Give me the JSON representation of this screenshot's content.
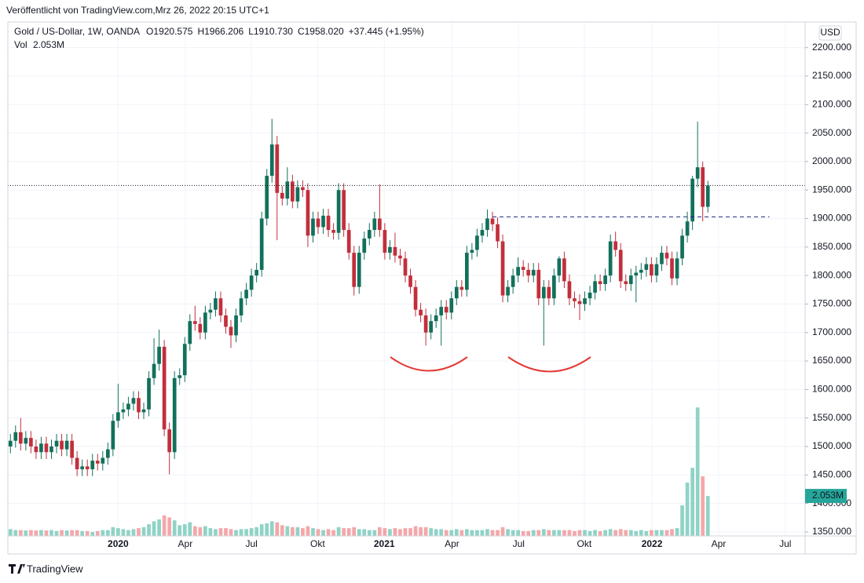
{
  "header": {
    "published": "Veröffentlicht von TradingView.com,Mrz 26, 2022 20:15 UTC+1",
    "brand": "TradingView"
  },
  "chart_data": {
    "type": "candlestick",
    "symbol": "Gold  / US-Dollar, 1W, OANDA",
    "ohlc_labels": [
      {
        "label": "O",
        "value": "1920.575"
      },
      {
        "label": "H",
        "value": "1966.206"
      },
      {
        "label": "L",
        "value": "1910.730"
      },
      {
        "label": "C",
        "value": "1958.020"
      }
    ],
    "change_label": "+37.445 (+1.95%)",
    "currency": "USD",
    "up_color": "#12705b",
    "down_color": "#c22f3c",
    "open": [
      1500,
      1510,
      1525,
      1505,
      1515,
      1500,
      1490,
      1505,
      1490,
      1500,
      1510,
      1495,
      1510,
      1480,
      1460,
      1465,
      1460,
      1475,
      1470,
      1480,
      1495,
      1545,
      1560,
      1565,
      1575,
      1585,
      1560,
      1565,
      1620,
      1645,
      1675,
      1530,
      1490,
      1620,
      1625,
      1680,
      1720,
      1715,
      1700,
      1735,
      1740,
      1760,
      1730,
      1710,
      1695,
      1730,
      1760,
      1775,
      1800,
      1810,
      1900,
      1975,
      2030,
      1945,
      1935,
      1965,
      1930,
      1955,
      1950,
      1870,
      1900,
      1885,
      1905,
      1880,
      1875,
      1950,
      1880,
      1840,
      1780,
      1840,
      1865,
      1880,
      1900,
      1880,
      1840,
      1850,
      1835,
      1830,
      1800,
      1780,
      1740,
      1730,
      1700,
      1720,
      1730,
      1745,
      1735,
      1760,
      1780,
      1775,
      1840,
      1845,
      1870,
      1880,
      1900,
      1890,
      1860,
      1765,
      1780,
      1800,
      1815,
      1810,
      1800,
      1810,
      1760,
      1780,
      1760,
      1800,
      1830,
      1790,
      1760,
      1755,
      1750,
      1760,
      1770,
      1790,
      1785,
      1800,
      1860,
      1845,
      1790,
      1785,
      1800,
      1805,
      1810,
      1820,
      1800,
      1820,
      1840,
      1830,
      1795,
      1830,
      1870,
      1895,
      1970,
      1990,
      1920.575
    ],
    "high": [
      1522,
      1537,
      1550,
      1527,
      1527,
      1512,
      1517,
      1517,
      1512,
      1522,
      1522,
      1522,
      1522,
      1492,
      1477,
      1477,
      1487,
      1487,
      1492,
      1507,
      1557,
      1610,
      1577,
      1587,
      1597,
      1597,
      1577,
      1632,
      1690,
      1705,
      1687,
      1542,
      1632,
      1637,
      1692,
      1732,
      1747,
      1727,
      1747,
      1752,
      1772,
      1772,
      1742,
      1722,
      1742,
      1772,
      1787,
      1812,
      1822,
      1912,
      1987,
      2075,
      2045,
      1957,
      1990,
      1977,
      1967,
      1967,
      1962,
      1912,
      1912,
      1917,
      1917,
      1892,
      1962,
      1962,
      1892,
      1852,
      1852,
      1877,
      1892,
      1912,
      1960,
      1892,
      1862,
      1875,
      1847,
      1842,
      1812,
      1792,
      1752,
      1742,
      1732,
      1742,
      1757,
      1757,
      1772,
      1792,
      1792,
      1852,
      1857,
      1882,
      1892,
      1916,
      1912,
      1902,
      1872,
      1792,
      1812,
      1832,
      1827,
      1822,
      1822,
      1822,
      1792,
      1792,
      1812,
      1834,
      1842,
      1802,
      1772,
      1767,
      1772,
      1782,
      1802,
      1802,
      1812,
      1872,
      1877,
      1857,
      1802,
      1812,
      1817,
      1822,
      1832,
      1832,
      1832,
      1852,
      1852,
      1842,
      1842,
      1882,
      1912,
      1975,
      2070,
      2000,
      1966.206
    ],
    "low": [
      1488,
      1498,
      1493,
      1493,
      1488,
      1478,
      1478,
      1478,
      1478,
      1488,
      1483,
      1483,
      1468,
      1448,
      1448,
      1448,
      1448,
      1458,
      1458,
      1468,
      1483,
      1533,
      1548,
      1553,
      1563,
      1548,
      1548,
      1553,
      1608,
      1633,
      1518,
      1451,
      1478,
      1608,
      1613,
      1668,
      1703,
      1688,
      1688,
      1723,
      1728,
      1718,
      1698,
      1673,
      1683,
      1718,
      1748,
      1763,
      1788,
      1798,
      1888,
      1963,
      1862,
      1923,
      1923,
      1918,
      1918,
      1938,
      1850,
      1858,
      1873,
      1873,
      1868,
      1863,
      1863,
      1868,
      1828,
      1765,
      1768,
      1828,
      1853,
      1868,
      1868,
      1828,
      1828,
      1823,
      1818,
      1788,
      1768,
      1728,
      1718,
      1677,
      1688,
      1708,
      1677,
      1723,
      1723,
      1748,
      1763,
      1763,
      1828,
      1833,
      1858,
      1868,
      1878,
      1848,
      1753,
      1753,
      1768,
      1788,
      1798,
      1788,
      1788,
      1748,
      1677,
      1748,
      1748,
      1788,
      1778,
      1748,
      1743,
      1722,
      1738,
      1748,
      1758,
      1773,
      1773,
      1788,
      1833,
      1778,
      1773,
      1773,
      1753,
      1793,
      1798,
      1788,
      1788,
      1808,
      1818,
      1783,
      1783,
      1818,
      1858,
      1880,
      1955,
      1895,
      1910.73
    ],
    "close": [
      1510,
      1525,
      1505,
      1515,
      1500,
      1490,
      1505,
      1490,
      1500,
      1510,
      1495,
      1510,
      1480,
      1460,
      1465,
      1460,
      1475,
      1470,
      1480,
      1495,
      1545,
      1560,
      1565,
      1575,
      1585,
      1560,
      1565,
      1620,
      1645,
      1675,
      1530,
      1490,
      1620,
      1625,
      1680,
      1720,
      1715,
      1700,
      1735,
      1740,
      1760,
      1730,
      1710,
      1695,
      1730,
      1760,
      1775,
      1800,
      1810,
      1900,
      1975,
      2030,
      1945,
      1935,
      1965,
      1930,
      1955,
      1950,
      1870,
      1900,
      1885,
      1905,
      1880,
      1875,
      1950,
      1880,
      1840,
      1780,
      1840,
      1865,
      1880,
      1900,
      1880,
      1840,
      1850,
      1835,
      1830,
      1800,
      1780,
      1740,
      1730,
      1700,
      1720,
      1730,
      1745,
      1735,
      1760,
      1780,
      1775,
      1840,
      1845,
      1870,
      1880,
      1900,
      1890,
      1860,
      1765,
      1780,
      1800,
      1815,
      1810,
      1800,
      1810,
      1760,
      1780,
      1760,
      1800,
      1830,
      1790,
      1760,
      1755,
      1750,
      1760,
      1770,
      1790,
      1785,
      1800,
      1860,
      1845,
      1790,
      1785,
      1800,
      1805,
      1810,
      1820,
      1800,
      1820,
      1840,
      1830,
      1795,
      1830,
      1870,
      1895,
      1970,
      1990,
      1920.575,
      1958.02
    ],
    "volume": {
      "name": "Vol",
      "value_label": "2.053M",
      "up_color": "#8fd3c6",
      "down_color": "#f4a7aa",
      "badge_color": "#26a69a",
      "ylim": [
        0,
        26.4
      ],
      "values": [
        0.35,
        0.3,
        0.3,
        0.28,
        0.3,
        0.28,
        0.3,
        0.28,
        0.3,
        0.25,
        0.3,
        0.28,
        0.3,
        0.3,
        0.25,
        0.25,
        0.2,
        0.25,
        0.3,
        0.3,
        0.45,
        0.4,
        0.35,
        0.3,
        0.35,
        0.4,
        0.45,
        0.6,
        0.75,
        0.85,
        1.05,
        0.95,
        0.8,
        0.55,
        0.6,
        0.7,
        0.5,
        0.45,
        0.5,
        0.4,
        0.35,
        0.4,
        0.4,
        0.35,
        0.3,
        0.35,
        0.35,
        0.4,
        0.45,
        0.6,
        0.65,
        0.75,
        0.7,
        0.55,
        0.5,
        0.45,
        0.45,
        0.4,
        0.5,
        0.4,
        0.35,
        0.3,
        0.35,
        0.3,
        0.45,
        0.4,
        0.4,
        0.45,
        0.35,
        0.35,
        0.3,
        0.3,
        0.45,
        0.4,
        0.35,
        0.4,
        0.35,
        0.4,
        0.4,
        0.5,
        0.45,
        0.45,
        0.4,
        0.35,
        0.35,
        0.3,
        0.3,
        0.35,
        0.3,
        0.35,
        0.3,
        0.3,
        0.3,
        0.35,
        0.3,
        0.3,
        0.45,
        0.35,
        0.3,
        0.3,
        0.25,
        0.25,
        0.3,
        0.3,
        0.35,
        0.3,
        0.3,
        0.3,
        0.3,
        0.3,
        0.25,
        0.3,
        0.3,
        0.25,
        0.3,
        0.25,
        0.3,
        0.35,
        0.3,
        0.35,
        0.3,
        0.3,
        0.25,
        0.3,
        0.25,
        0.3,
        0.3,
        0.3,
        0.3,
        0.35,
        0.4,
        1.57,
        2.74,
        3.5,
        6.6,
        3.06,
        2.053
      ]
    },
    "resistance": {
      "value": 1903,
      "xlim": [
        94,
        148
      ],
      "color": "#1a237e"
    },
    "xlim": [
      -0.5,
      154.5
    ],
    "xticks": [
      {
        "value": 21,
        "label": "2020"
      },
      {
        "value": 34.1,
        "label": "Apr"
      },
      {
        "value": 47,
        "label": "Jul"
      },
      {
        "value": 59.9,
        "label": "Okt"
      },
      {
        "value": 72.9,
        "label": "2021"
      },
      {
        "value": 86.1,
        "label": "Apr"
      },
      {
        "value": 99.1,
        "label": "Jul"
      },
      {
        "value": 111.9,
        "label": "Okt"
      },
      {
        "value": 125.1,
        "label": "2022"
      },
      {
        "value": 138.1,
        "label": "Apr"
      },
      {
        "value": 151.1,
        "label": "Jul"
      }
    ],
    "ylim": [
      1343,
      2245
    ],
    "yticks": [
      {
        "value": 1350,
        "label": "1350.000"
      },
      {
        "value": 1400,
        "label": "1400.000"
      },
      {
        "value": 1450,
        "label": "1450.000"
      },
      {
        "value": 1500,
        "label": "1500.000"
      },
      {
        "value": 1550,
        "label": "1550.000"
      },
      {
        "value": 1600,
        "label": "1600.000"
      },
      {
        "value": 1650,
        "label": "1650.000"
      },
      {
        "value": 1700,
        "label": "1700.000"
      },
      {
        "value": 1750,
        "label": "1750.000"
      },
      {
        "value": 1800,
        "label": "1800.000"
      },
      {
        "value": 1850,
        "label": "1850.000"
      },
      {
        "value": 1900,
        "label": "1900.000"
      },
      {
        "value": 1950,
        "label": "1950.000"
      },
      {
        "value": 2000,
        "label": "2000.000"
      },
      {
        "value": 2050,
        "label": "2050.000"
      },
      {
        "value": 2100,
        "label": "2100.000"
      },
      {
        "value": 2150,
        "label": "2150.000"
      },
      {
        "value": 2200,
        "label": "2200.000"
      }
    ],
    "grid": true
  }
}
